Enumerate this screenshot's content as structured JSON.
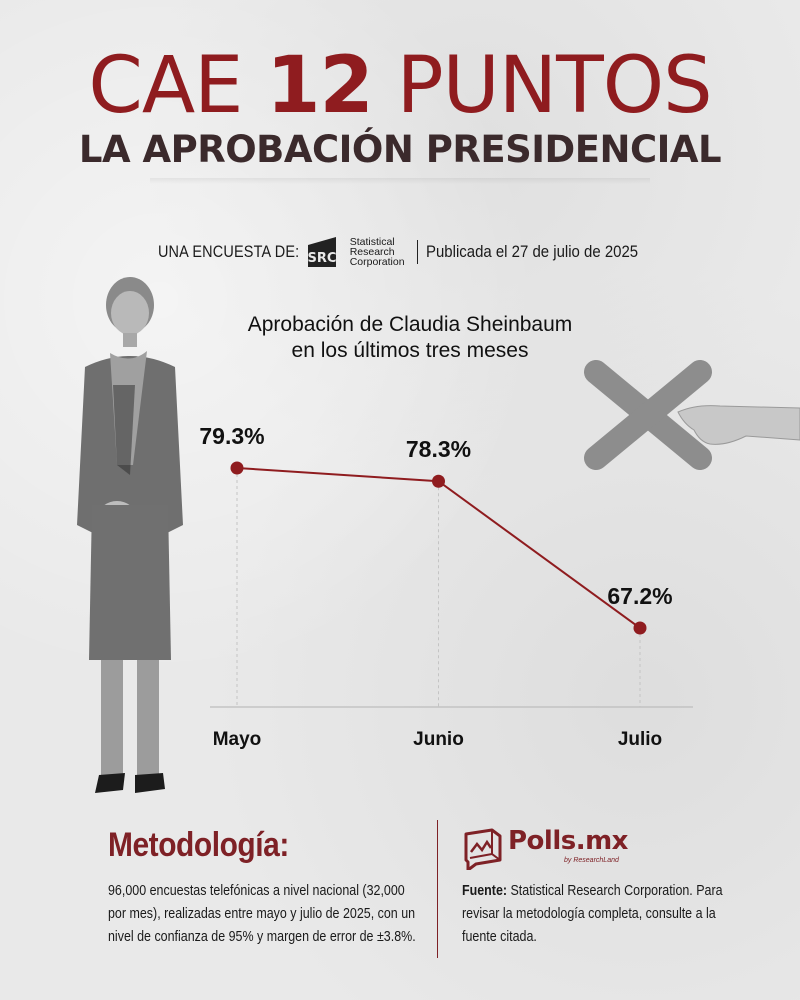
{
  "header": {
    "headline_pre": "CAE ",
    "headline_num": "12",
    "headline_post": " PUNTOS",
    "subheadline": "LA APROBACIÓN PRESIDENCIAL"
  },
  "byline": {
    "intro": "UNA ENCUESTA DE:",
    "logo_abbr": "SRC",
    "logo_line1": "Statistical",
    "logo_line2": "Research",
    "logo_line3": "Corporation",
    "published": "Publicada el 27 de julio de 2025"
  },
  "images": {
    "person": "president-standing-photo",
    "xmark": "hand-holding-x-mark"
  },
  "chart_data": {
    "type": "line",
    "title": "Aprobación de Claudia Sheinbaum en los últimos tres meses",
    "title_line1": "Aprobación de Claudia Sheinbaum",
    "title_line2": "en los últimos tres meses",
    "categories": [
      "Mayo",
      "Junio",
      "Julio"
    ],
    "values": [
      79.3,
      78.3,
      67.2
    ],
    "value_labels": [
      "79.3%",
      "78.3%",
      "67.2%"
    ],
    "unit": "%",
    "xlabel": "",
    "ylabel": "",
    "grid": false,
    "line_color": "#8f1c1f",
    "marker_color": "#8f1c1f"
  },
  "methodology": {
    "title": "Metodología:",
    "body": "96,000 encuestas telefónicas a nivel nacional (32,000 por mes), realizadas entre mayo y julio de 2025, con un nivel de confianza de 95% y margen de error de ±3.8%."
  },
  "source": {
    "brand": "Polls.mx",
    "brand_sub": "by ResearchLand",
    "label": "Fuente:",
    "text": " Statistical Research Corporation. Para revisar la metodología completa, consulte a la fuente citada."
  },
  "colors": {
    "accent": "#8f1c1f",
    "dark_accent": "#7e2126",
    "subhead": "#3b2a2c",
    "background": "#e9e9e9"
  }
}
